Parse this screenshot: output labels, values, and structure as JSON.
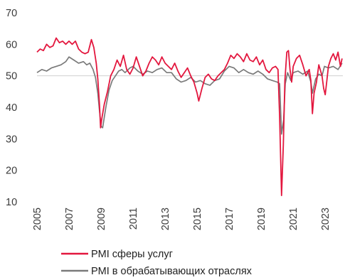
{
  "chart_data": {
    "type": "line",
    "title": "",
    "xlabel": "",
    "ylabel": "",
    "ylim": [
      10,
      70
    ],
    "yticks": [
      10,
      20,
      30,
      40,
      50,
      60,
      70
    ],
    "xlim": [
      2005,
      2024.1
    ],
    "xticks": [
      "2005",
      "2007",
      "2009",
      "2011",
      "2013",
      "2015",
      "2017",
      "2019",
      "2021",
      "2023"
    ],
    "grid": false,
    "legend_position": "bottom",
    "reference_line": 50,
    "series": [
      {
        "name": "PMI сферы услуг",
        "color": "#e3173e",
        "points": [
          [
            2005.0,
            57.5
          ],
          [
            2005.2,
            58.5
          ],
          [
            2005.4,
            58.0
          ],
          [
            2005.6,
            60.0
          ],
          [
            2005.8,
            59.0
          ],
          [
            2006.0,
            59.5
          ],
          [
            2006.2,
            62.0
          ],
          [
            2006.4,
            60.5
          ],
          [
            2006.6,
            61.0
          ],
          [
            2006.8,
            60.0
          ],
          [
            2007.0,
            61.0
          ],
          [
            2007.2,
            60.0
          ],
          [
            2007.4,
            61.0
          ],
          [
            2007.6,
            58.5
          ],
          [
            2007.8,
            57.5
          ],
          [
            2008.0,
            57.0
          ],
          [
            2008.2,
            57.5
          ],
          [
            2008.4,
            61.5
          ],
          [
            2008.55,
            59.0
          ],
          [
            2008.7,
            54.0
          ],
          [
            2008.8,
            49.0
          ],
          [
            2008.9,
            41.0
          ],
          [
            2008.97,
            33.5
          ],
          [
            2009.05,
            36.5
          ],
          [
            2009.2,
            41.0
          ],
          [
            2009.4,
            45.0
          ],
          [
            2009.6,
            50.0
          ],
          [
            2009.8,
            52.0
          ],
          [
            2010.0,
            55.0
          ],
          [
            2010.2,
            53.0
          ],
          [
            2010.4,
            56.5
          ],
          [
            2010.6,
            52.0
          ],
          [
            2010.8,
            50.5
          ],
          [
            2011.0,
            52.5
          ],
          [
            2011.2,
            56.0
          ],
          [
            2011.4,
            53.0
          ],
          [
            2011.6,
            50.0
          ],
          [
            2011.8,
            51.5
          ],
          [
            2012.0,
            54.0
          ],
          [
            2012.2,
            56.0
          ],
          [
            2012.4,
            55.0
          ],
          [
            2012.6,
            53.5
          ],
          [
            2012.8,
            56.0
          ],
          [
            2013.0,
            54.0
          ],
          [
            2013.2,
            53.0
          ],
          [
            2013.4,
            52.0
          ],
          [
            2013.6,
            54.0
          ],
          [
            2013.8,
            51.5
          ],
          [
            2014.0,
            49.5
          ],
          [
            2014.2,
            51.0
          ],
          [
            2014.4,
            52.5
          ],
          [
            2014.6,
            50.0
          ],
          [
            2014.8,
            48.0
          ],
          [
            2015.0,
            44.5
          ],
          [
            2015.1,
            42.0
          ],
          [
            2015.3,
            46.0
          ],
          [
            2015.5,
            49.5
          ],
          [
            2015.7,
            50.5
          ],
          [
            2015.9,
            49.0
          ],
          [
            2016.1,
            48.5
          ],
          [
            2016.3,
            50.0
          ],
          [
            2016.5,
            51.0
          ],
          [
            2016.7,
            52.0
          ],
          [
            2016.9,
            54.0
          ],
          [
            2017.1,
            56.5
          ],
          [
            2017.3,
            55.5
          ],
          [
            2017.5,
            57.0
          ],
          [
            2017.7,
            56.0
          ],
          [
            2017.9,
            54.5
          ],
          [
            2018.1,
            57.0
          ],
          [
            2018.3,
            55.0
          ],
          [
            2018.5,
            54.5
          ],
          [
            2018.7,
            56.0
          ],
          [
            2018.9,
            53.5
          ],
          [
            2019.1,
            55.0
          ],
          [
            2019.3,
            52.0
          ],
          [
            2019.5,
            51.0
          ],
          [
            2019.7,
            52.5
          ],
          [
            2019.9,
            53.0
          ],
          [
            2020.05,
            52.0
          ],
          [
            2020.15,
            37.0
          ],
          [
            2020.27,
            12.0
          ],
          [
            2020.38,
            28.0
          ],
          [
            2020.48,
            48.5
          ],
          [
            2020.6,
            57.5
          ],
          [
            2020.7,
            58.0
          ],
          [
            2020.8,
            52.0
          ],
          [
            2020.9,
            48.0
          ],
          [
            2021.0,
            53.0
          ],
          [
            2021.2,
            55.5
          ],
          [
            2021.4,
            56.5
          ],
          [
            2021.6,
            53.5
          ],
          [
            2021.8,
            50.0
          ],
          [
            2022.0,
            52.0
          ],
          [
            2022.1,
            48.5
          ],
          [
            2022.2,
            38.0
          ],
          [
            2022.3,
            44.5
          ],
          [
            2022.45,
            48.0
          ],
          [
            2022.6,
            53.5
          ],
          [
            2022.8,
            50.0
          ],
          [
            2022.9,
            46.0
          ],
          [
            2023.0,
            44.0
          ],
          [
            2023.1,
            48.5
          ],
          [
            2023.2,
            53.0
          ],
          [
            2023.35,
            55.5
          ],
          [
            2023.5,
            57.0
          ],
          [
            2023.65,
            55.0
          ],
          [
            2023.8,
            57.5
          ],
          [
            2023.95,
            53.0
          ],
          [
            2024.05,
            55.5
          ]
        ]
      },
      {
        "name": "PMI в обрабатывающих отраслях",
        "color": "#7a7a7a",
        "points": [
          [
            2005.0,
            51.0
          ],
          [
            2005.3,
            52.0
          ],
          [
            2005.6,
            51.5
          ],
          [
            2005.9,
            52.5
          ],
          [
            2006.2,
            53.0
          ],
          [
            2006.5,
            53.5
          ],
          [
            2006.8,
            54.5
          ],
          [
            2007.0,
            56.0
          ],
          [
            2007.3,
            55.0
          ],
          [
            2007.6,
            54.0
          ],
          [
            2007.9,
            54.5
          ],
          [
            2008.1,
            53.5
          ],
          [
            2008.3,
            54.0
          ],
          [
            2008.5,
            52.0
          ],
          [
            2008.65,
            49.5
          ],
          [
            2008.8,
            44.5
          ],
          [
            2008.9,
            39.0
          ],
          [
            2009.0,
            34.0
          ],
          [
            2009.1,
            33.5
          ],
          [
            2009.3,
            40.0
          ],
          [
            2009.5,
            45.5
          ],
          [
            2009.7,
            48.5
          ],
          [
            2009.9,
            50.0
          ],
          [
            2010.1,
            51.5
          ],
          [
            2010.3,
            52.0
          ],
          [
            2010.5,
            51.0
          ],
          [
            2010.8,
            52.5
          ],
          [
            2011.0,
            53.0
          ],
          [
            2011.3,
            51.5
          ],
          [
            2011.6,
            50.5
          ],
          [
            2011.9,
            51.5
          ],
          [
            2012.2,
            51.0
          ],
          [
            2012.5,
            52.0
          ],
          [
            2012.8,
            52.5
          ],
          [
            2013.1,
            51.0
          ],
          [
            2013.4,
            51.0
          ],
          [
            2013.7,
            49.0
          ],
          [
            2014.0,
            48.0
          ],
          [
            2014.3,
            48.5
          ],
          [
            2014.6,
            49.5
          ],
          [
            2014.9,
            48.0
          ],
          [
            2015.2,
            48.5
          ],
          [
            2015.5,
            47.5
          ],
          [
            2015.8,
            47.0
          ],
          [
            2016.1,
            48.5
          ],
          [
            2016.4,
            49.0
          ],
          [
            2016.7,
            51.5
          ],
          [
            2017.0,
            53.0
          ],
          [
            2017.3,
            52.5
          ],
          [
            2017.6,
            51.0
          ],
          [
            2017.9,
            52.0
          ],
          [
            2018.2,
            51.0
          ],
          [
            2018.5,
            50.5
          ],
          [
            2018.8,
            51.5
          ],
          [
            2019.1,
            50.5
          ],
          [
            2019.4,
            49.0
          ],
          [
            2019.7,
            48.5
          ],
          [
            2020.0,
            48.0
          ],
          [
            2020.15,
            47.5
          ],
          [
            2020.27,
            31.5
          ],
          [
            2020.4,
            36.0
          ],
          [
            2020.5,
            47.5
          ],
          [
            2020.65,
            51.0
          ],
          [
            2020.85,
            48.5
          ],
          [
            2021.0,
            51.0
          ],
          [
            2021.3,
            51.5
          ],
          [
            2021.6,
            50.5
          ],
          [
            2021.9,
            51.5
          ],
          [
            2022.1,
            48.0
          ],
          [
            2022.2,
            44.5
          ],
          [
            2022.4,
            49.0
          ],
          [
            2022.6,
            50.5
          ],
          [
            2022.8,
            50.0
          ],
          [
            2022.95,
            53.0
          ],
          [
            2023.2,
            52.5
          ],
          [
            2023.5,
            53.0
          ],
          [
            2023.8,
            52.0
          ],
          [
            2024.05,
            54.0
          ]
        ]
      }
    ]
  }
}
